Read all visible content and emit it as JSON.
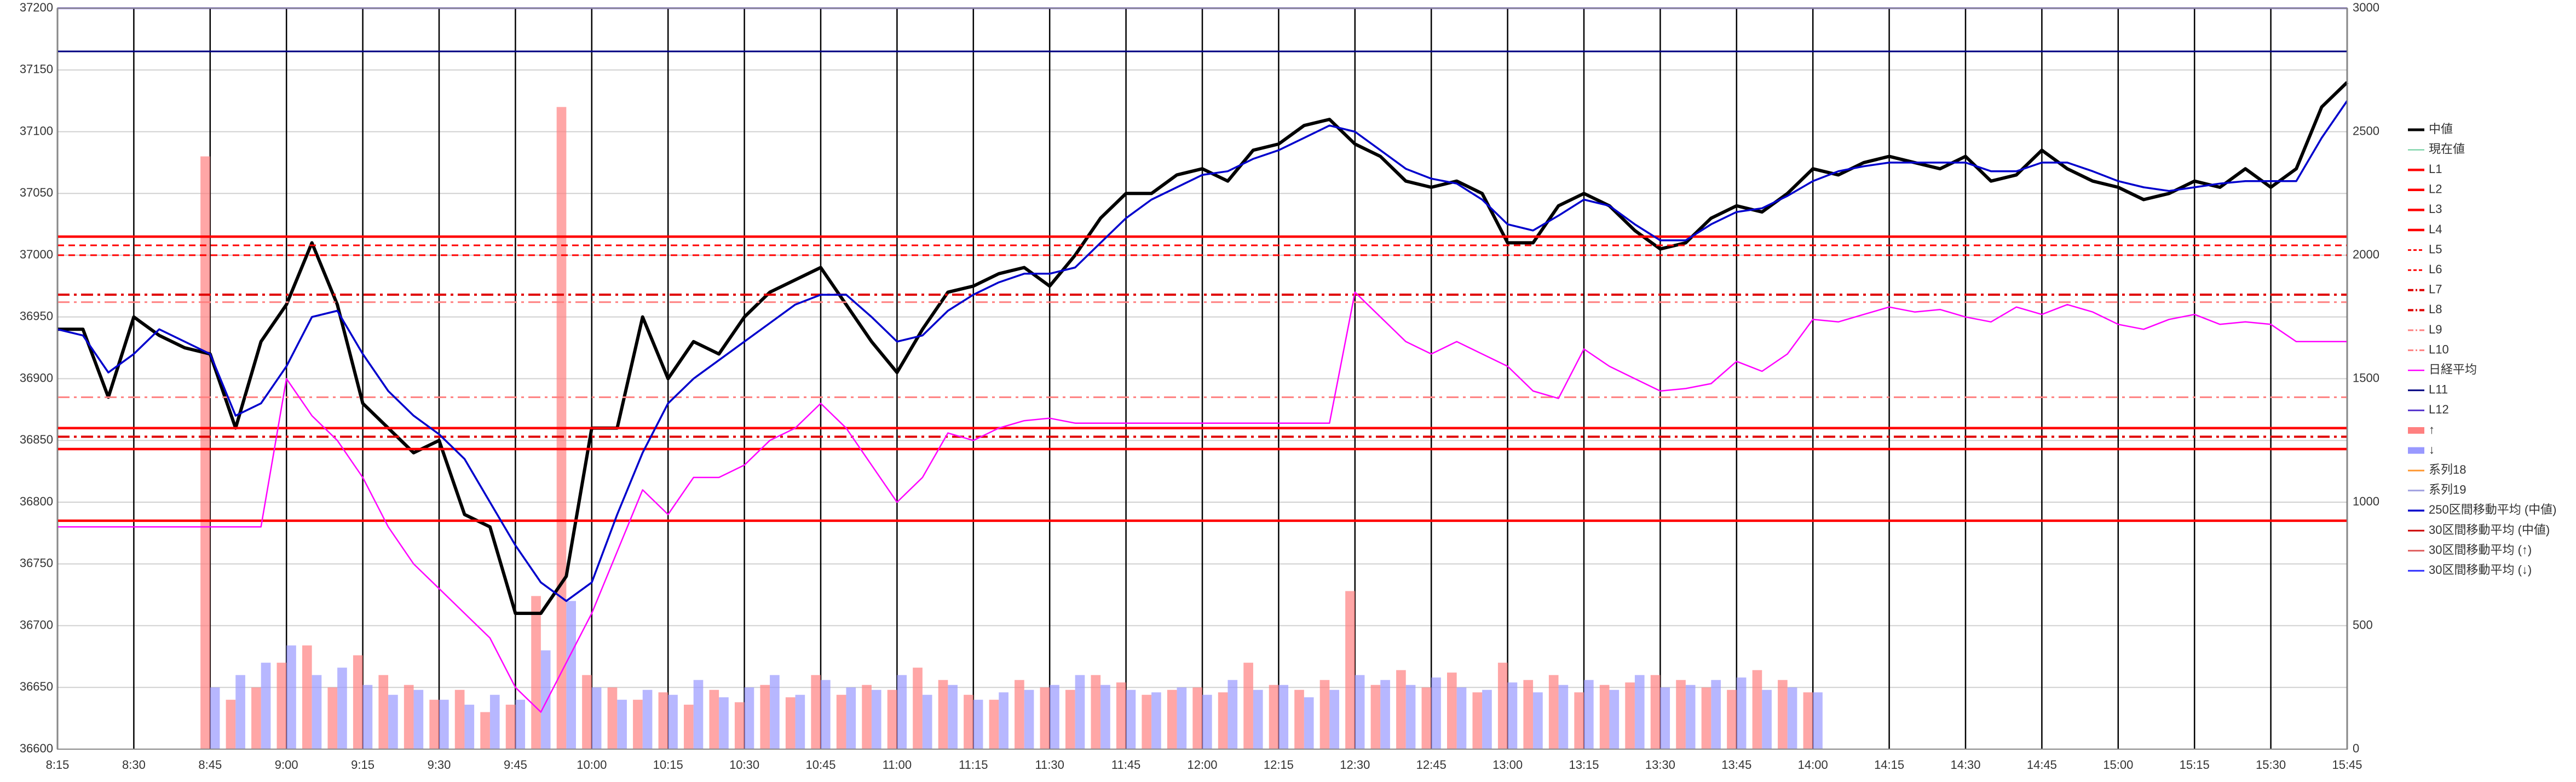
{
  "chart_data": {
    "type": "line",
    "x": [
      "8:15",
      "8:20",
      "8:25",
      "8:30",
      "8:35",
      "8:40",
      "8:45",
      "8:50",
      "8:55",
      "9:00",
      "9:05",
      "9:10",
      "9:15",
      "9:20",
      "9:25",
      "9:30",
      "9:35",
      "9:40",
      "9:45",
      "9:50",
      "9:55",
      "10:00",
      "10:05",
      "10:10",
      "10:15",
      "10:20",
      "10:25",
      "10:30",
      "10:35",
      "10:40",
      "10:45",
      "10:50",
      "10:55",
      "11:00",
      "11:05",
      "11:10",
      "11:15",
      "11:20",
      "11:25",
      "11:30",
      "11:35",
      "11:40",
      "11:45",
      "11:50",
      "11:55",
      "12:00",
      "12:05",
      "12:10",
      "12:15",
      "12:20",
      "12:25",
      "12:30",
      "12:35",
      "12:40",
      "12:45",
      "12:50",
      "12:55",
      "13:00",
      "13:05",
      "13:10",
      "13:15",
      "13:20",
      "13:25",
      "13:30",
      "13:35",
      "13:40",
      "13:45",
      "13:50",
      "13:55",
      "14:00",
      "14:05",
      "14:10",
      "14:15",
      "14:20",
      "14:25",
      "14:30",
      "14:35",
      "14:40",
      "14:45",
      "14:50",
      "14:55",
      "15:00",
      "15:05",
      "15:10",
      "15:15",
      "15:20",
      "15:25",
      "15:30",
      "15:35",
      "15:40",
      "15:45"
    ],
    "xlim": [
      "8:15",
      "15:45"
    ],
    "xticks": [
      "8:15",
      "8:30",
      "8:45",
      "9:00",
      "9:15",
      "9:30",
      "9:45",
      "10:00",
      "10:15",
      "10:30",
      "10:45",
      "11:00",
      "11:15",
      "11:30",
      "11:45",
      "12:00",
      "12:15",
      "12:30",
      "12:45",
      "13:00",
      "13:15",
      "13:30",
      "13:45",
      "14:00",
      "14:15",
      "14:30",
      "14:45",
      "15:00",
      "15:15",
      "15:30",
      "15:45"
    ],
    "ylim": [
      36600,
      37200
    ],
    "yticks": [
      36600,
      36650,
      36700,
      36750,
      36800,
      36850,
      36900,
      36950,
      37000,
      37050,
      37100,
      37150,
      37200
    ],
    "y2lim": [
      0,
      3000
    ],
    "y2ticks": [
      0,
      500,
      1000,
      1500,
      2000,
      2500,
      3000
    ],
    "grid": true,
    "legend": "right",
    "series": [
      {
        "name": "中値",
        "color": "#000000",
        "kind": "line",
        "width": 6,
        "values": [
          36940,
          36940,
          36885,
          36950,
          36935,
          36925,
          36920,
          36860,
          36930,
          36960,
          37010,
          36960,
          36880,
          36860,
          36840,
          36850,
          36790,
          36780,
          36710,
          36710,
          36740,
          36860,
          36860,
          36950,
          36900,
          36930,
          36920,
          36950,
          36970,
          36980,
          36990,
          36960,
          36930,
          36905,
          36940,
          36970,
          36975,
          36985,
          36990,
          36975,
          37000,
          37030,
          37050,
          37050,
          37065,
          37070,
          37060,
          37085,
          37090,
          37105,
          37110,
          37090,
          37080,
          37060,
          37055,
          37060,
          37050,
          37010,
          37010,
          37040,
          37050,
          37040,
          37020,
          37005,
          37010,
          37030,
          37040,
          37035,
          37050,
          37070,
          37065,
          37075,
          37080,
          37075,
          37070,
          37080,
          37060,
          37065,
          37085,
          37070,
          37060,
          37055,
          37045,
          37050,
          37060,
          37055,
          37070,
          37055,
          37070,
          37120,
          37140
        ]
      },
      {
        "name": "現在値",
        "color": "#66cc99",
        "kind": "line",
        "width": 2
      },
      {
        "name": "L1",
        "color": "#ff0000",
        "kind": "hline",
        "width": 4.5,
        "value": 37015
      },
      {
        "name": "L2",
        "color": "#ff0000",
        "kind": "hline",
        "width": 4.5,
        "value": 36860
      },
      {
        "name": "L3",
        "color": "#ff0000",
        "kind": "hline",
        "width": 4.5,
        "value": 36843
      },
      {
        "name": "L4",
        "color": "#ff0000",
        "kind": "hline",
        "width": 4.5,
        "value": 36785
      },
      {
        "name": "L5",
        "color": "#ff0000",
        "kind": "hline",
        "width": 3,
        "dash": "dash",
        "value": 37008
      },
      {
        "name": "L6",
        "color": "#ff0000",
        "kind": "hline",
        "width": 3,
        "dash": "dash",
        "value": 37000
      },
      {
        "name": "L7",
        "color": "#e00000",
        "kind": "hline",
        "width": 4,
        "dash": "dashdot",
        "value": 36968
      },
      {
        "name": "L8",
        "color": "#e00000",
        "kind": "hline",
        "width": 4,
        "dash": "dashdot",
        "value": 36853
      },
      {
        "name": "L9",
        "color": "#ff8080",
        "kind": "hline",
        "width": 3,
        "dash": "dashdot",
        "value": 36962
      },
      {
        "name": "L10",
        "color": "#ff8080",
        "kind": "hline",
        "width": 3,
        "dash": "dashdot",
        "value": 36885
      },
      {
        "name": "日経平均",
        "color": "#ff00ff",
        "kind": "line",
        "axis": "y2",
        "width": 2.5,
        "values": [
          900,
          900,
          900,
          900,
          900,
          900,
          900,
          900,
          900,
          1500,
          1350,
          1250,
          1100,
          900,
          750,
          650,
          550,
          450,
          250,
          150,
          350,
          550,
          800,
          1050,
          950,
          1100,
          1100,
          1150,
          1250,
          1300,
          1400,
          1300,
          1150,
          1000,
          1100,
          1280,
          1250,
          1300,
          1330,
          1340,
          1320,
          1320,
          1320,
          1320,
          1320,
          1320,
          1320,
          1320,
          1320,
          1320,
          1320,
          1850,
          1750,
          1650,
          1600,
          1650,
          1600,
          1550,
          1450,
          1420,
          1620,
          1550,
          1500,
          1450,
          1460,
          1480,
          1570,
          1530,
          1600,
          1740,
          1730,
          1760,
          1790,
          1770,
          1780,
          1750,
          1730,
          1790,
          1760,
          1800,
          1770,
          1720,
          1700,
          1740,
          1760,
          1720,
          1730,
          1720,
          1650,
          1650,
          1650
        ]
      },
      {
        "name": "L11",
        "color": "#000080",
        "kind": "hline",
        "width": 3,
        "value": 37165
      },
      {
        "name": "L12",
        "color": "#5533cc",
        "kind": "hline",
        "width": 3,
        "value": 37200
      },
      {
        "name": "↑",
        "color": "#ff8080",
        "kind": "bar",
        "axis": "y2",
        "offset": -1,
        "values": [
          null,
          null,
          null,
          null,
          null,
          null,
          2400,
          200,
          250,
          350,
          420,
          250,
          380,
          300,
          260,
          200,
          240,
          150,
          180,
          620,
          2600,
          300,
          250,
          200,
          230,
          180,
          240,
          190,
          260,
          210,
          300,
          220,
          260,
          240,
          330,
          280,
          220,
          200,
          280,
          250,
          240,
          300,
          270,
          220,
          240,
          250,
          230,
          350,
          260,
          240,
          280,
          640,
          260,
          320,
          250,
          310,
          230,
          350,
          280,
          300,
          230,
          260,
          270,
          300,
          280,
          250,
          240,
          320,
          280,
          230,
          null,
          null,
          null,
          null,
          null,
          null,
          null,
          null,
          null,
          null,
          null,
          null,
          null,
          null,
          null,
          null,
          null,
          null,
          null,
          null,
          null
        ]
      },
      {
        "name": "↓",
        "color": "#9999ff",
        "kind": "bar",
        "axis": "y2",
        "offset": 1,
        "values": [
          null,
          null,
          null,
          null,
          null,
          null,
          250,
          300,
          350,
          420,
          300,
          330,
          260,
          220,
          240,
          200,
          180,
          220,
          200,
          400,
          600,
          250,
          200,
          240,
          220,
          280,
          210,
          250,
          300,
          220,
          280,
          250,
          240,
          300,
          220,
          260,
          200,
          230,
          240,
          260,
          300,
          260,
          240,
          230,
          250,
          220,
          280,
          240,
          260,
          210,
          240,
          300,
          280,
          260,
          290,
          250,
          240,
          270,
          230,
          260,
          280,
          240,
          300,
          250,
          260,
          280,
          290,
          240,
          250,
          230,
          null,
          null,
          null,
          null,
          null,
          null,
          null,
          null,
          null,
          null,
          null,
          null,
          null,
          null,
          null,
          null,
          null,
          null,
          null,
          null,
          null
        ]
      },
      {
        "name": "系列18",
        "color": "#ff9933",
        "kind": "line",
        "width": 3
      },
      {
        "name": "系列19",
        "color": "#a0a0e0",
        "kind": "line",
        "width": 3
      },
      {
        "name": "250区間移動平均 (中値)",
        "color": "#0000cc",
        "kind": "line",
        "width": 3.5,
        "values": [
          36940,
          36935,
          36905,
          36920,
          36940,
          36930,
          36920,
          36870,
          36880,
          36910,
          36950,
          36955,
          36920,
          36890,
          36870,
          36855,
          36835,
          36800,
          36765,
          36735,
          36720,
          36735,
          36790,
          36840,
          36880,
          36900,
          36915,
          36930,
          36945,
          36960,
          36968,
          36968,
          36950,
          36930,
          36935,
          36955,
          36968,
          36978,
          36985,
          36985,
          36990,
          37010,
          37030,
          37045,
          37055,
          37065,
          37068,
          37078,
          37085,
          37095,
          37105,
          37100,
          37085,
          37070,
          37062,
          37058,
          37045,
          37025,
          37020,
          37032,
          37045,
          37040,
          37025,
          37012,
          37012,
          37025,
          37035,
          37038,
          37048,
          37060,
          37068,
          37072,
          37075,
          37075,
          37075,
          37075,
          37068,
          37068,
          37075,
          37075,
          37068,
          37060,
          37055,
          37052,
          37055,
          37058,
          37060,
          37060,
          37060,
          37095,
          37125
        ]
      },
      {
        "name": "30区間移動平均 (中値)",
        "color": "#cc0000",
        "kind": "line",
        "width": 3
      },
      {
        "name": "30区間移動平均 (↑)",
        "color": "#e06060",
        "kind": "line",
        "width": 3
      },
      {
        "name": "30区間移動平均 (↓)",
        "color": "#3030ff",
        "kind": "line",
        "width": 3
      }
    ]
  }
}
